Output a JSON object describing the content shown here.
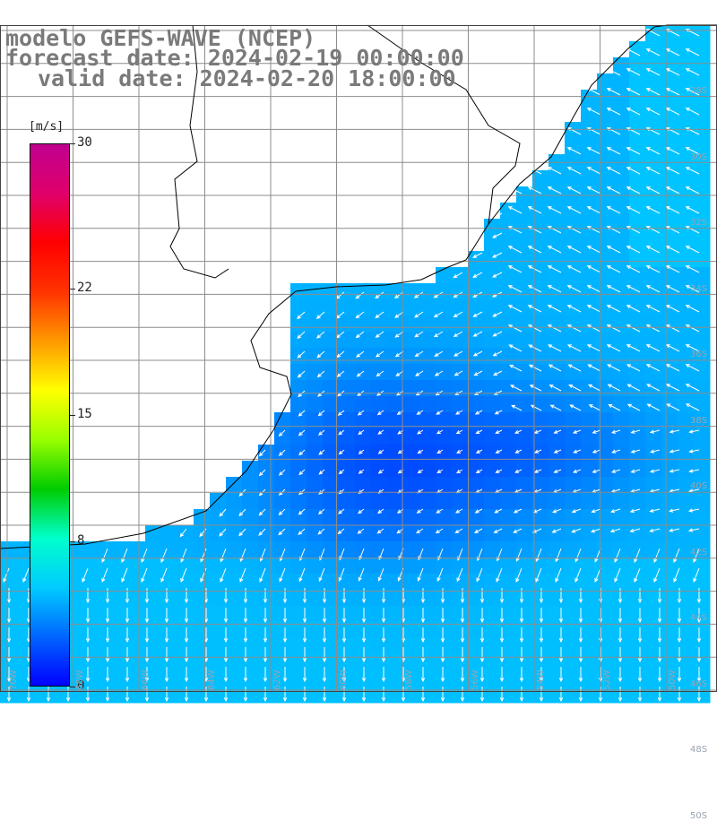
{
  "title": {
    "line1": "modelo GEFS-WAVE (NCEP)",
    "line2": "forecast date: 2024-02-19 00:00:00",
    "line3": "valid date: 2024-02-20 18:00:00"
  },
  "colorbar": {
    "unit": "[m/s]",
    "ticks": [
      "30",
      "22",
      "15",
      "8",
      "0"
    ],
    "tick_values": [
      30,
      22,
      15,
      8,
      0
    ],
    "min": 0,
    "max": 30,
    "colors": [
      "#0000ff",
      "#0066ff",
      "#00ccff",
      "#00ffcc",
      "#00cc00",
      "#99ff00",
      "#ffff00",
      "#ff9900",
      "#ff3300",
      "#ff0000",
      "#e0006a",
      "#c00090"
    ]
  },
  "lat_labels": [
    "28S",
    "30S",
    "32S",
    "34S",
    "36S",
    "38S",
    "40S",
    "42S",
    "44S",
    "46S",
    "48S",
    "50S"
  ],
  "lon_labels": [
    "70W",
    "68W",
    "66W",
    "64W",
    "62W",
    "60W",
    "58W",
    "56W",
    "54W",
    "52W",
    "50W"
  ],
  "colors": {
    "land": "#ffffff",
    "grid": "#8c8c8c",
    "coast": "#000000",
    "arrow": "#ffffff",
    "title": "#7a7a7a"
  }
}
